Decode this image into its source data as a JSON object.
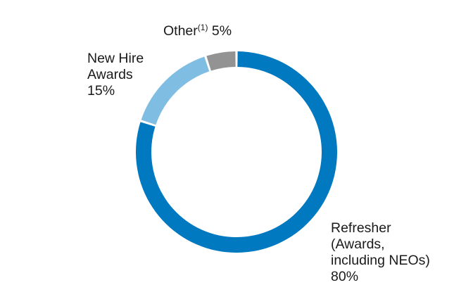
{
  "chart_data": {
    "type": "pie",
    "style": "donut",
    "grid": false,
    "legend": "none",
    "slices": [
      {
        "label_lines": [
          "Refresher",
          "(Awards,",
          "including NEOs)"
        ],
        "value": 80,
        "value_label": "80%",
        "color": "#0079c1"
      },
      {
        "label_lines": [
          "New Hire",
          "Awards"
        ],
        "value": 15,
        "value_label": "15%",
        "color": "#7fbde3"
      },
      {
        "label": "Other",
        "footnote": "(1)",
        "value": 5,
        "value_label": "5%",
        "color": "#939393"
      }
    ]
  }
}
